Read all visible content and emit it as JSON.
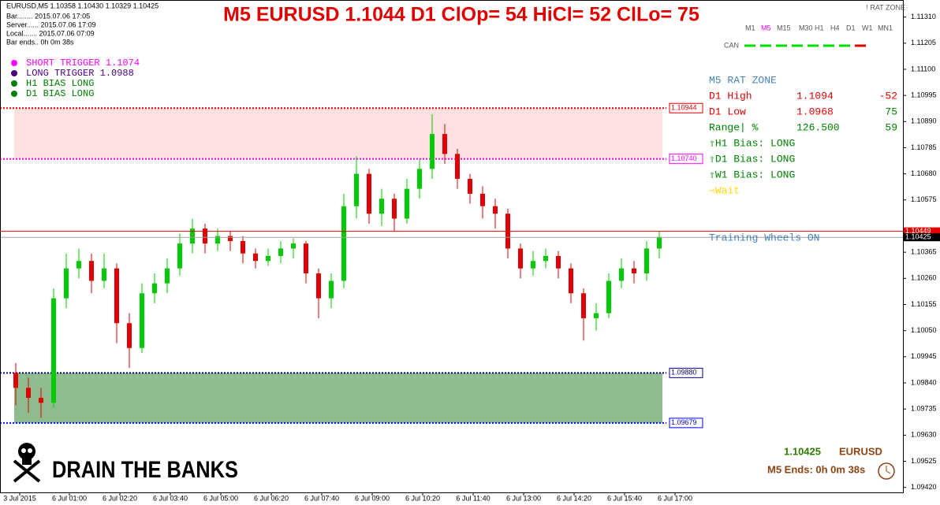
{
  "chart_data": {
    "type": "candlestick",
    "title": "M5 EURUSD 1.1044 D1 ClOp= 54 HiCl= 52 ClLo= 75",
    "symbol_line": "EURUSD,M5  1.10358 1.10430 1.10329 1.10425",
    "info_lines": [
      "Bar........ 2015.07.06 17:05",
      "Server...... 2015.07.06 17:09",
      "Local....... 2015.07.06 07:09",
      "Bar ends.. 0h 0m 38s"
    ],
    "indicator_name": "! RAT ZONE",
    "timeframes": [
      "M1",
      "M5",
      "M15",
      "M30",
      "H1",
      "H4",
      "D1",
      "W1",
      "MN1"
    ],
    "active_timeframe": "M5",
    "can_label": "CAN",
    "open": [
      1.0988,
      1.0982,
      1.0978,
      1.0976,
      1.1018,
      1.103,
      1.1033,
      1.1025,
      1.103,
      1.1008,
      1.0998,
      1.102,
      1.1024,
      1.103,
      1.104,
      1.1046,
      1.104,
      1.1043,
      1.1041,
      1.1036,
      1.1033,
      1.1035,
      1.1038,
      1.104,
      1.1028,
      1.1018,
      1.1025,
      1.1055,
      1.1068,
      1.1052,
      1.1058,
      1.105,
      1.1062,
      1.107,
      1.1084,
      1.1076,
      1.1066,
      1.106,
      1.1055,
      1.1052,
      1.1038,
      1.103,
      1.1033,
      1.1035,
      1.103,
      1.102,
      1.101,
      1.1012,
      1.1025,
      1.103,
      1.1028,
      1.1038
    ],
    "high": [
      1.0992,
      1.0986,
      1.0982,
      1.1022,
      1.1036,
      1.1038,
      1.1036,
      1.1036,
      1.1032,
      1.1012,
      1.1024,
      1.1028,
      1.1034,
      1.1044,
      1.105,
      1.1048,
      1.1046,
      1.1045,
      1.1043,
      1.1038,
      1.1038,
      1.1041,
      1.1042,
      1.1041,
      1.103,
      1.1028,
      1.106,
      1.1075,
      1.107,
      1.1062,
      1.106,
      1.1066,
      1.1074,
      1.1092,
      1.1088,
      1.1078,
      1.1068,
      1.1063,
      1.1058,
      1.1054,
      1.104,
      1.1037,
      1.1038,
      1.1037,
      1.1032,
      1.1022,
      1.1016,
      1.1028,
      1.1034,
      1.1033,
      1.1041,
      1.10449
    ],
    "low": [
      1.0975,
      1.0972,
      1.097,
      1.0974,
      1.1014,
      1.1026,
      1.102,
      1.1022,
      1.1,
      1.099,
      1.0996,
      1.1016,
      1.102,
      1.1027,
      1.1036,
      1.1036,
      1.1037,
      1.1037,
      1.1032,
      1.103,
      1.1031,
      1.1032,
      1.1034,
      1.1024,
      1.101,
      1.1014,
      1.1022,
      1.105,
      1.1048,
      1.1047,
      1.1045,
      1.1048,
      1.1058,
      1.1066,
      1.1072,
      1.1062,
      1.1056,
      1.105,
      1.1046,
      1.1034,
      1.1026,
      1.1027,
      1.103,
      1.1026,
      1.1016,
      1.1001,
      1.1005,
      1.101,
      1.1022,
      1.1024,
      1.1025,
      1.1034
    ],
    "close": [
      1.0982,
      1.0978,
      1.0976,
      1.1018,
      1.103,
      1.1033,
      1.1025,
      1.103,
      1.1008,
      1.0998,
      1.102,
      1.1024,
      1.103,
      1.104,
      1.1046,
      1.104,
      1.1043,
      1.1041,
      1.1036,
      1.1033,
      1.1035,
      1.1038,
      1.104,
      1.1028,
      1.1018,
      1.1025,
      1.1055,
      1.1068,
      1.1052,
      1.1058,
      1.105,
      1.1062,
      1.107,
      1.1084,
      1.1076,
      1.1066,
      1.106,
      1.1055,
      1.1052,
      1.1038,
      1.103,
      1.1033,
      1.1035,
      1.103,
      1.102,
      1.101,
      1.1012,
      1.1025,
      1.103,
      1.1028,
      1.1038,
      1.10425
    ],
    "up_color": "#00cc00",
    "down_color": "#e00000",
    "ylim": [
      1.094,
      1.1135
    ],
    "yticks": [
      {
        "value": 1.1131,
        "label": "1.11310"
      },
      1.11205,
      {
        "value": 1.111,
        "label": "1.11100"
      },
      1.10995,
      {
        "value": 1.1089,
        "label": "1.10890"
      },
      1.10785,
      {
        "value": 1.1068,
        "label": "1.10680"
      },
      1.10575,
      1.10365,
      {
        "value": 1.1026,
        "label": "1.10260"
      },
      1.10155,
      {
        "value": 1.1005,
        "label": "1.10050"
      },
      1.09945,
      {
        "value": 1.0984,
        "label": "1.09840"
      },
      1.09735,
      {
        "value": 1.0963,
        "label": "1.09630"
      },
      1.09525,
      {
        "value": 1.0942,
        "label": "1.09420"
      }
    ],
    "x_labels": [
      "3 Jul 2015",
      "6 Jul 01:00",
      "6 Jul 02:20",
      "6 Jul 03:40",
      "6 Jul 05:00",
      "6 Jul 06:20",
      "6 Jul 07:40",
      "6 Jul 09:00",
      "6 Jul 10:20",
      "6 Jul 11:40",
      "6 Jul 13:00",
      "6 Jul 14:20",
      "6 Jul 15:40",
      "6 Jul 17:00"
    ],
    "levels": [
      {
        "value": 1.10944,
        "color": "#e00000",
        "fill_to_next": "#ffe0e0"
      },
      {
        "value": 1.1074,
        "label": "1.10740",
        "color": "#ff00ff"
      },
      {
        "value": 1.0988,
        "label": "1.09880",
        "color": "#000080",
        "fill_to_next": "#8fbc8f"
      },
      {
        "value": 1.09679,
        "color": "#0000ff"
      }
    ],
    "price_lines": [
      {
        "value": 1.10449,
        "color": "#e00000",
        "box": "#e00000"
      },
      {
        "value": 1.10425,
        "color": "#a0a0a0",
        "box": "#000000"
      }
    ],
    "legend": [
      {
        "text": "SHORT TRIGGER 1.1074",
        "color": "#ff00ff"
      },
      {
        "text": "LONG TRIGGER  1.0988",
        "color": "#4b0082"
      },
      {
        "text": "H1 BIAS LONG",
        "color": "#008000"
      },
      {
        "text": "D1 BIAS LONG",
        "color": "#008000"
      }
    ],
    "panel": [
      {
        "cells": [
          "M5 RAT ZONE"
        ],
        "colors": [
          "#4682b4"
        ]
      },
      {
        "cells": [
          "D1 High",
          "1.1094",
          "-52"
        ],
        "colors": [
          "#e00000",
          "#e00000",
          "#e00000"
        ]
      },
      {
        "cells": [
          "D1 Low",
          "1.0968",
          "75"
        ],
        "colors": [
          "#e00000",
          "#e00000",
          "#008000"
        ]
      },
      {
        "cells": [
          "Range| %",
          "126.500",
          "59"
        ],
        "colors": [
          "#008000",
          "#008000",
          "#008000"
        ]
      },
      {
        "cells": [
          " ⇧H1 Bias: LONG"
        ],
        "colors": [
          "#008000"
        ]
      },
      {
        "cells": [
          " ⇧D1 Bias: LONG"
        ],
        "colors": [
          "#008000"
        ]
      },
      {
        "cells": [
          " ⇧W1 Bias: LONG"
        ],
        "colors": [
          "#008000"
        ]
      },
      {
        "cells": [
          " ⇨Wait"
        ],
        "colors": [
          "#ffd700"
        ]
      }
    ],
    "training_note": "Training Wheels ON",
    "banner": "DRAIN THE BANKS",
    "footer_price": "1.10425",
    "footer_symbol": "EURUSD",
    "footer_timer": "M5 Ends: 0h 0m 38s"
  }
}
